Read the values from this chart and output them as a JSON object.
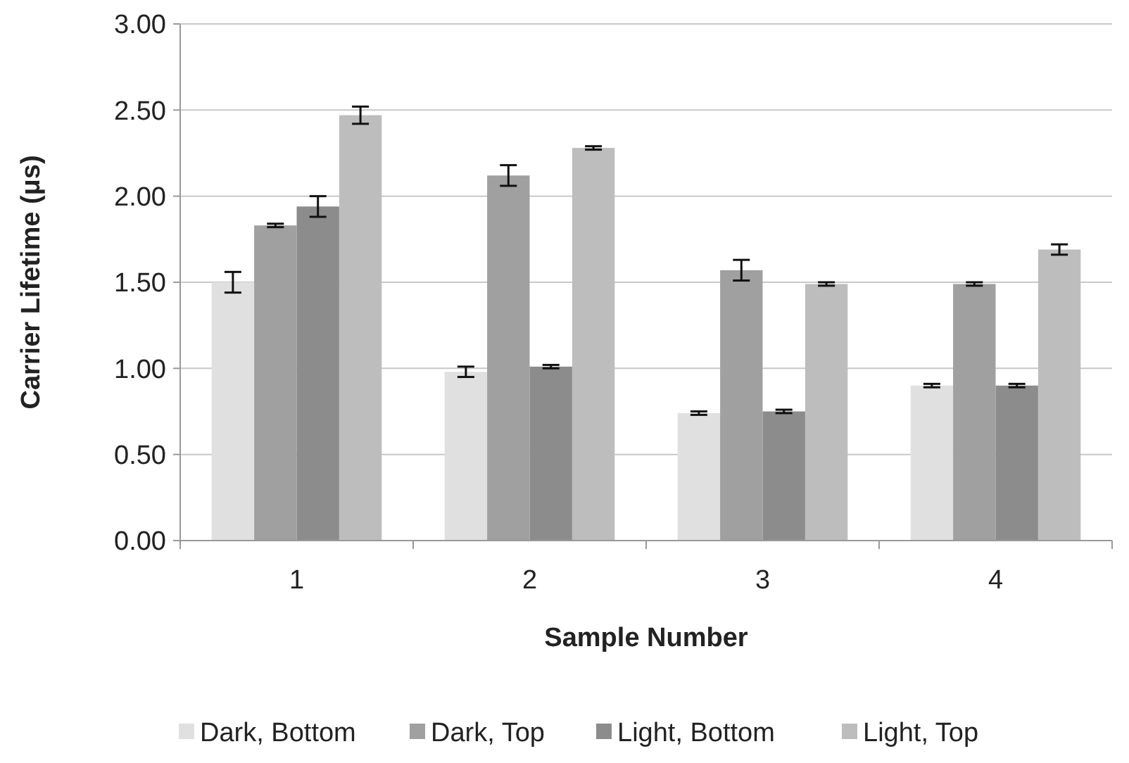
{
  "chart_data": {
    "type": "bar",
    "xlabel": "Sample Number",
    "ylabel": "Carrier Lifetime (μs)",
    "categories": [
      "1",
      "2",
      "3",
      "4"
    ],
    "series": [
      {
        "name": "Dark, Bottom",
        "color": "#e0e0e0",
        "values": [
          1.5,
          0.98,
          0.74,
          0.9
        ],
        "errors": [
          0.06,
          0.03,
          0.01,
          0.01
        ]
      },
      {
        "name": "Dark, Top",
        "color": "#a0a0a0",
        "values": [
          1.83,
          2.12,
          1.57,
          1.49
        ],
        "errors": [
          0.01,
          0.06,
          0.06,
          0.01
        ]
      },
      {
        "name": "Light, Bottom",
        "color": "#8c8c8c",
        "values": [
          1.94,
          1.01,
          0.75,
          0.9
        ],
        "errors": [
          0.06,
          0.01,
          0.01,
          0.01
        ]
      },
      {
        "name": "Light, Top",
        "color": "#bdbdbd",
        "values": [
          2.47,
          2.28,
          1.49,
          1.69
        ],
        "errors": [
          0.05,
          0.01,
          0.01,
          0.03
        ]
      }
    ],
    "ylim": [
      0,
      3
    ],
    "yticks": [
      {
        "value": 0,
        "label": "0.00"
      },
      {
        "value": 0.5,
        "label": "0.50"
      },
      {
        "value": 1,
        "label": "1.00"
      },
      {
        "value": 1.5,
        "label": "1.50"
      },
      {
        "value": 2,
        "label": "2.00"
      },
      {
        "value": 2.5,
        "label": "2.50"
      },
      {
        "value": 3,
        "label": "3.00"
      }
    ],
    "grid": "y",
    "legend": "bottom"
  }
}
